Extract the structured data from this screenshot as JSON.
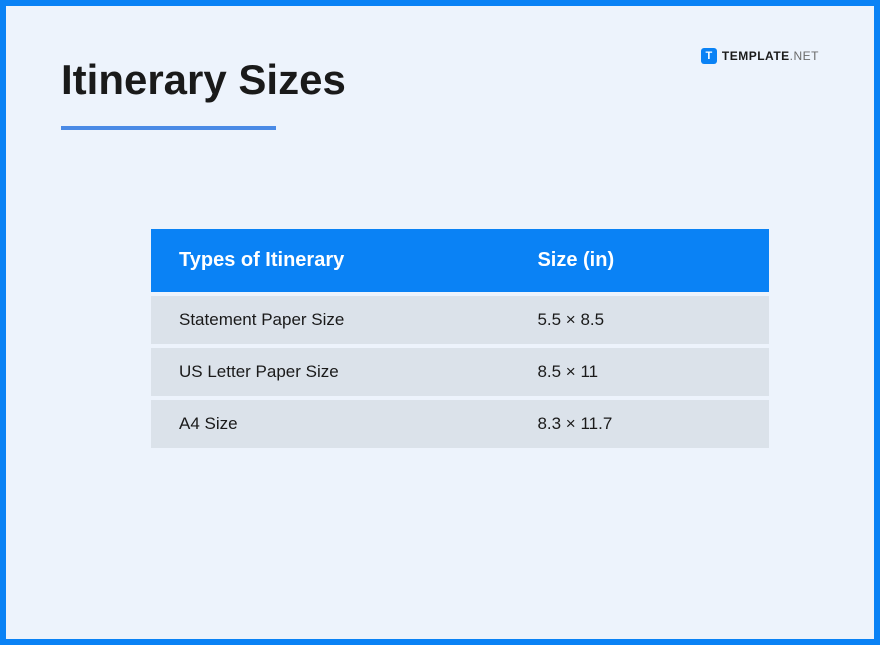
{
  "page": {
    "title": "Itinerary Sizes",
    "frame_border_color": "#0a82f5",
    "background_color": "#edf3fc",
    "underline_color": "#4a8ae6",
    "title_color": "#1a1a1a",
    "title_fontsize": 42
  },
  "watermark": {
    "icon_letter": "T",
    "brand": "TEMPLATE",
    "suffix": ".NET",
    "icon_bg_color": "#0a82f5",
    "text_color": "#1a1a1a"
  },
  "table": {
    "type": "table",
    "header_bg_color": "#0a82f5",
    "header_text_color": "#ffffff",
    "row_bg_color": "#dbe2ea",
    "row_text_color": "#1a1a1a",
    "header_fontsize": 20,
    "row_fontsize": 17,
    "columns": [
      {
        "label": "Types of Itinerary",
        "key": "type"
      },
      {
        "label": "Size (in)",
        "key": "size"
      }
    ],
    "rows": [
      {
        "type": "Statement Paper Size",
        "size": "5.5 × 8.5"
      },
      {
        "type": "US Letter Paper Size",
        "size": "8.5 × 11"
      },
      {
        "type": "A4 Size",
        "size": "8.3 × 11.7"
      }
    ]
  }
}
